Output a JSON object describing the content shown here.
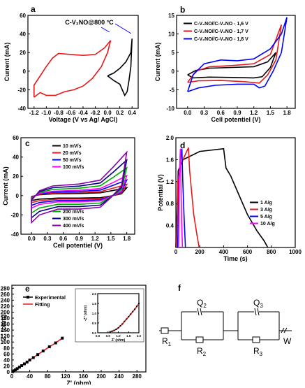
{
  "chart_data": [
    {
      "panel": "a",
      "type": "line",
      "xlabel": "Voltage (V vs Ag/ AgCl)",
      "ylabel": "Current (mA)",
      "xlim": [
        -1.3,
        0.5
      ],
      "ylim": [
        -40,
        60
      ],
      "xticks": [
        "-1.2",
        "-1.0",
        "-0.8",
        "-0.6",
        "-0.4",
        "-0.2",
        "0.0",
        "0.2",
        "0.4"
      ],
      "yticks": [
        "-40",
        "-20",
        "0",
        "20",
        "40",
        "60"
      ],
      "annotation": "C-V₂NO@800 °C",
      "series": [
        {
          "color": "#e41a1c",
          "points": [
            [
              -1.2,
              -28
            ],
            [
              -1.2,
              -15
            ],
            [
              -1.1,
              -5
            ],
            [
              -1.0,
              5
            ],
            [
              -0.9,
              14
            ],
            [
              -0.8,
              19
            ],
            [
              -0.6,
              18
            ],
            [
              -0.4,
              17
            ],
            [
              -0.2,
              18
            ],
            [
              -0.05,
              25
            ],
            [
              0.05,
              33
            ],
            [
              0.0,
              20
            ],
            [
              -0.1,
              5
            ],
            [
              -0.25,
              -8
            ],
            [
              -0.4,
              -16
            ],
            [
              -0.55,
              -20
            ],
            [
              -0.7,
              -22
            ],
            [
              -0.85,
              -26
            ],
            [
              -1.0,
              -26
            ],
            [
              -1.1,
              -23
            ],
            [
              -1.2,
              -28
            ]
          ]
        },
        {
          "color": "#000000",
          "points": [
            [
              0.0,
              -5
            ],
            [
              0.1,
              -10
            ],
            [
              0.2,
              -14
            ],
            [
              0.28,
              -26
            ],
            [
              0.32,
              -22
            ],
            [
              0.35,
              -10
            ],
            [
              0.38,
              5
            ],
            [
              0.4,
              35
            ],
            [
              0.38,
              20
            ],
            [
              0.3,
              10
            ],
            [
              0.2,
              3
            ],
            [
              0.1,
              -2
            ],
            [
              0.0,
              -5
            ]
          ]
        }
      ]
    },
    {
      "panel": "b",
      "type": "line",
      "xlabel": "Cell potentiel (V)",
      "ylabel": "Current  (mA)",
      "xlim": [
        -0.2,
        1.95
      ],
      "ylim": [
        -10,
        15
      ],
      "xticks": [
        "0.0",
        "0.3",
        "0.6",
        "0.9",
        "1.2",
        "1.5",
        "1.8"
      ],
      "yticks": [
        "-10",
        "-5",
        "0",
        "5",
        "10",
        "15"
      ],
      "series": [
        {
          "name": "C-V₂NO//C-V₂NO - 1,6 V",
          "color": "#000000",
          "points": [
            [
              0,
              -1
            ],
            [
              0.15,
              0.2
            ],
            [
              0.4,
              0.8
            ],
            [
              0.8,
              1
            ],
            [
              1.2,
              1.2
            ],
            [
              1.45,
              2.5
            ],
            [
              1.6,
              5
            ],
            [
              1.5,
              1
            ],
            [
              1.35,
              -1.5
            ],
            [
              1.2,
              -1.8
            ],
            [
              0.8,
              -1.7
            ],
            [
              0.4,
              -1.6
            ],
            [
              0.1,
              -1.8
            ],
            [
              0,
              -1
            ]
          ]
        },
        {
          "name": "C-V₂NO//C-V₂NO - 1,7 V",
          "color": "#e41a1c",
          "points": [
            [
              0,
              -3
            ],
            [
              0.15,
              0
            ],
            [
              0.4,
              1.2
            ],
            [
              0.8,
              1.5
            ],
            [
              1.2,
              2
            ],
            [
              1.5,
              4.5
            ],
            [
              1.7,
              12.5
            ],
            [
              1.6,
              3
            ],
            [
              1.45,
              -1
            ],
            [
              1.3,
              -3.2
            ],
            [
              1.0,
              -2.8
            ],
            [
              0.6,
              -2.5
            ],
            [
              0.2,
              -2.6
            ],
            [
              0,
              -3
            ]
          ]
        },
        {
          "name": "C-V₂NO//C-V₂NO - 1,8 V",
          "color": "#0000ff",
          "points": [
            [
              0,
              -5.5
            ],
            [
              0.1,
              -1
            ],
            [
              0.3,
              2
            ],
            [
              0.6,
              3
            ],
            [
              0.9,
              2.8
            ],
            [
              1.2,
              3.3
            ],
            [
              1.5,
              6
            ],
            [
              1.7,
              10
            ],
            [
              1.8,
              14.5
            ],
            [
              1.7,
              5
            ],
            [
              1.55,
              0
            ],
            [
              1.4,
              -4
            ],
            [
              1.3,
              -4.5
            ],
            [
              1.2,
              -3.5
            ],
            [
              0.9,
              -3.5
            ],
            [
              0.5,
              -3.8
            ],
            [
              0.2,
              -4.5
            ],
            [
              0,
              -5.5
            ]
          ]
        }
      ]
    },
    {
      "panel": "c",
      "type": "line",
      "xlabel": "Cell potentiel (V)",
      "ylabel": "Current  (mA)",
      "xlim": [
        -0.2,
        1.95
      ],
      "ylim": [
        -40,
        60
      ],
      "xticks": [
        "0.0",
        "0.3",
        "0.6",
        "0.9",
        "1.2",
        "1.5",
        "1.8"
      ],
      "yticks": [
        "-40",
        "-20",
        "0",
        "20",
        "40",
        "60"
      ],
      "series": [
        {
          "name": "10 mV/s",
          "color": "#000000",
          "s": 0.18
        },
        {
          "name": "20 mV/s",
          "color": "#e41a1c",
          "s": 0.26
        },
        {
          "name": "50 mV/s",
          "color": "#0000ff",
          "s": 0.36
        },
        {
          "name": "100 mV/s",
          "color": "#ff00ff",
          "s": 0.46
        },
        {
          "name": "200 mV/s",
          "color": "#00aa00",
          "s": 0.64
        },
        {
          "name": "300 mV/s",
          "color": "#000080",
          "s": 0.82
        },
        {
          "name": "400 mV/s",
          "color": "#8800aa",
          "s": 1.0
        }
      ]
    },
    {
      "panel": "d",
      "type": "line",
      "xlabel": "Time (s)",
      "ylabel": "Potential (V)",
      "xlim": [
        0,
        1000
      ],
      "ylim": [
        0,
        2.0
      ],
      "xticks": [
        "0",
        "200",
        "400",
        "600",
        "800",
        "1000"
      ],
      "yticks": [
        "0.4",
        "0.8",
        "1.2",
        "1.6",
        "2.0"
      ],
      "series": [
        {
          "name": "1 A/g",
          "color": "#000000",
          "points": [
            [
              0,
              0
            ],
            [
              20,
              1.4
            ],
            [
              60,
              1.6
            ],
            [
              200,
              1.75
            ],
            [
              400,
              1.8
            ],
            [
              420,
              1.45
            ],
            [
              460,
              1.3
            ],
            [
              520,
              1.0
            ],
            [
              600,
              0.6
            ],
            [
              680,
              0.3
            ],
            [
              740,
              0.12
            ],
            [
              770,
              0
            ]
          ]
        },
        {
          "name": "3 A/g",
          "color": "#e41a1c",
          "points": [
            [
              5,
              0
            ],
            [
              15,
              1.2
            ],
            [
              40,
              1.5
            ],
            [
              80,
              1.7
            ],
            [
              105,
              1.82
            ],
            [
              115,
              1.4
            ],
            [
              150,
              0.6
            ],
            [
              175,
              0.25
            ],
            [
              195,
              0
            ]
          ]
        },
        {
          "name": "5 A/g",
          "color": "#0000ff",
          "points": [
            [
              15,
              0
            ],
            [
              25,
              1.2
            ],
            [
              40,
              1.6
            ],
            [
              50,
              1.8
            ],
            [
              58,
              1.2
            ],
            [
              68,
              0.6
            ],
            [
              80,
              0
            ]
          ]
        },
        {
          "name": "10 A/g",
          "color": "#ff00ff",
          "points": [
            [
              22,
              0
            ],
            [
              28,
              1.2
            ],
            [
              34,
              1.6
            ],
            [
              38,
              1.8
            ],
            [
              42,
              1.2
            ],
            [
              48,
              0.5
            ],
            [
              55,
              0
            ]
          ]
        }
      ]
    },
    {
      "panel": "e",
      "type": "scatter",
      "xlabel": "Z' (ohm)",
      "ylabel": "-Z'' (ohm)",
      "xlim": [
        0,
        300
      ],
      "ylim": [
        0,
        290
      ],
      "xticks": [
        "0",
        "40",
        "80",
        "120",
        "160",
        "200",
        "240",
        "280"
      ],
      "yticks": [
        "0",
        "20",
        "40",
        "60",
        "80",
        "100",
        "120",
        "140",
        "160",
        "180",
        "200",
        "220",
        "240",
        "260",
        "280"
      ],
      "series": [
        {
          "name": "Experimental",
          "color": "#000000",
          "points": [
            [
              2,
              1
            ],
            [
              5,
              4
            ],
            [
              8,
              7
            ],
            [
              12,
              11
            ],
            [
              17,
              16
            ],
            [
              22,
              21
            ],
            [
              28,
              27
            ],
            [
              34,
              33
            ],
            [
              40,
              40
            ],
            [
              48,
              48
            ],
            [
              58,
              58
            ],
            [
              70,
              70
            ],
            [
              84,
              84
            ],
            [
              98,
              97
            ],
            [
              113,
              113
            ]
          ]
        },
        {
          "name": "Fitting",
          "color": "#e41a1c",
          "points": [
            [
              2,
              1
            ],
            [
              5,
              4
            ],
            [
              8,
              7
            ],
            [
              12,
              11
            ],
            [
              17,
              16
            ],
            [
              22,
              21
            ],
            [
              28,
              27
            ],
            [
              34,
              33
            ],
            [
              40,
              40
            ],
            [
              48,
              48
            ],
            [
              58,
              58
            ],
            [
              70,
              70
            ],
            [
              84,
              84
            ],
            [
              98,
              97
            ],
            [
              113,
              113
            ]
          ]
        }
      ],
      "inset": {
        "xlabel": "Z' (ohm)",
        "ylabel": "-Z'' (ohm)",
        "xlim": [
          0,
          2.0
        ],
        "ylim": [
          0,
          2.0
        ],
        "xticks": [
          "0.0",
          "0.5",
          "1.0",
          "1.5",
          "2.0"
        ],
        "yticks": [
          "0.0",
          "0.5",
          "1.0",
          "1.5",
          "2.0"
        ],
        "points": [
          [
            0.6,
            0.05
          ],
          [
            0.7,
            0.08
          ],
          [
            0.8,
            0.12
          ],
          [
            0.9,
            0.18
          ],
          [
            1.0,
            0.25
          ],
          [
            1.1,
            0.35
          ],
          [
            1.2,
            0.45
          ],
          [
            1.3,
            0.58
          ],
          [
            1.4,
            0.7
          ],
          [
            1.5,
            0.82
          ],
          [
            1.6,
            0.95
          ],
          [
            1.7,
            1.08
          ],
          [
            1.8,
            1.2
          ],
          [
            1.9,
            1.35
          ],
          [
            2.0,
            1.5
          ]
        ]
      }
    }
  ],
  "circuit": {
    "panel": "f",
    "labels": [
      "Q",
      "Q",
      "R",
      "R",
      "R",
      "W"
    ],
    "subscripts": [
      "2",
      "3",
      "1",
      "2",
      "3"
    ]
  }
}
